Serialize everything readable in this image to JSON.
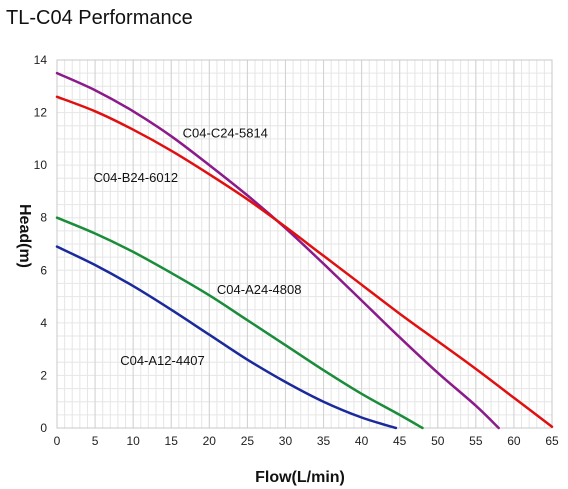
{
  "chart_data": {
    "type": "line",
    "title": "TL-C04 Performance",
    "xlabel": "Flow(L/min)",
    "ylabel": "Head(m)",
    "xlim": [
      0,
      65
    ],
    "ylim": [
      0,
      14
    ],
    "x_ticks": [
      "0",
      "5",
      "10",
      "15",
      "20",
      "25",
      "30",
      "35",
      "40",
      "45",
      "50",
      "55",
      "60",
      "65"
    ],
    "y_ticks": [
      "0",
      "2",
      "4",
      "6",
      "8",
      "10",
      "12",
      "14"
    ],
    "grid": true,
    "series": [
      {
        "name": "C04-C24-5814",
        "color": "#8b1a8b",
        "points": [
          [
            0,
            13.5
          ],
          [
            5,
            12.85
          ],
          [
            10,
            12.05
          ],
          [
            15,
            11.1
          ],
          [
            20,
            10.0
          ],
          [
            25,
            8.85
          ],
          [
            30,
            7.6
          ],
          [
            35,
            6.25
          ],
          [
            40,
            4.85
          ],
          [
            45,
            3.45
          ],
          [
            50,
            2.1
          ],
          [
            55,
            0.85
          ],
          [
            58,
            0.0
          ]
        ]
      },
      {
        "name": "C04-B24-6012",
        "color": "#e01010",
        "points": [
          [
            0,
            12.6
          ],
          [
            5,
            12.05
          ],
          [
            10,
            11.35
          ],
          [
            15,
            10.55
          ],
          [
            20,
            9.65
          ],
          [
            25,
            8.7
          ],
          [
            30,
            7.65
          ],
          [
            35,
            6.55
          ],
          [
            40,
            5.45
          ],
          [
            45,
            4.35
          ],
          [
            50,
            3.3
          ],
          [
            55,
            2.25
          ],
          [
            60,
            1.15
          ],
          [
            65,
            0.05
          ]
        ]
      },
      {
        "name": "C04-A24-4808",
        "color": "#1a8c3a",
        "points": [
          [
            0,
            8.0
          ],
          [
            5,
            7.4
          ],
          [
            10,
            6.7
          ],
          [
            15,
            5.9
          ],
          [
            20,
            5.05
          ],
          [
            25,
            4.1
          ],
          [
            30,
            3.15
          ],
          [
            35,
            2.2
          ],
          [
            40,
            1.3
          ],
          [
            45,
            0.5
          ],
          [
            48,
            0.0
          ]
        ]
      },
      {
        "name": "C04-A12-4407",
        "color": "#1a2a9c",
        "points": [
          [
            0,
            6.9
          ],
          [
            5,
            6.2
          ],
          [
            10,
            5.4
          ],
          [
            15,
            4.5
          ],
          [
            20,
            3.55
          ],
          [
            25,
            2.6
          ],
          [
            30,
            1.75
          ],
          [
            35,
            1.0
          ],
          [
            40,
            0.4
          ],
          [
            44.5,
            0.0
          ]
        ]
      }
    ],
    "labels": [
      {
        "text": "C04-C24-5814",
        "x": 16.5,
        "y": 11.05
      },
      {
        "text": "C04-B24-6012",
        "x": 4.8,
        "y": 9.35
      },
      {
        "text": "C04-A24-4808",
        "x": 21.0,
        "y": 5.1
      },
      {
        "text": "C04-A12-4407",
        "x": 8.3,
        "y": 2.4
      }
    ]
  }
}
